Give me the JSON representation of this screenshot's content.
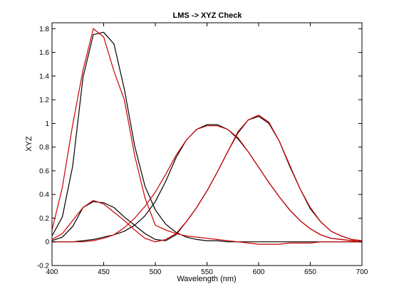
{
  "chart_data": {
    "type": "line",
    "title": "LMS -> XYZ Check",
    "xlabel": "Wavelength (nm)",
    "ylabel": "XYZ",
    "xlim": [
      400,
      700
    ],
    "ylim": [
      -0.2,
      1.85
    ],
    "xticks": [
      400,
      450,
      500,
      550,
      600,
      650,
      700
    ],
    "yticks": [
      -0.2,
      0,
      0.2,
      0.4,
      0.6,
      0.8,
      1,
      1.2,
      1.4,
      1.6,
      1.8
    ],
    "ytick_labels": [
      "-0.2",
      "0",
      "0.2",
      "0.4",
      "0.6",
      "0.8",
      "1",
      "1.2",
      "1.4",
      "1.6",
      "1.8"
    ],
    "grid": false,
    "legend": "none",
    "x": [
      400,
      410,
      420,
      430,
      440,
      450,
      460,
      470,
      480,
      490,
      500,
      510,
      520,
      530,
      540,
      550,
      560,
      570,
      580,
      590,
      600,
      610,
      620,
      630,
      640,
      650,
      660,
      670,
      680,
      690,
      700
    ],
    "series": [
      {
        "color": "#000000",
        "values": [
          0.01,
          0.04,
          0.13,
          0.29,
          0.34,
          0.33,
          0.29,
          0.21,
          0.14,
          0.07,
          0.02,
          0.01,
          0.06,
          0.17,
          0.29,
          0.43,
          0.59,
          0.76,
          0.92,
          1.03,
          1.06,
          1.0,
          0.85,
          0.64,
          0.45,
          0.28,
          0.17,
          0.09,
          0.05,
          0.02,
          0.01
        ]
      },
      {
        "color": "#000000",
        "values": [
          0.0,
          0.0,
          0.0,
          0.01,
          0.02,
          0.04,
          0.06,
          0.09,
          0.14,
          0.22,
          0.34,
          0.51,
          0.71,
          0.86,
          0.95,
          0.99,
          0.99,
          0.95,
          0.87,
          0.76,
          0.63,
          0.5,
          0.38,
          0.27,
          0.18,
          0.11,
          0.06,
          0.03,
          0.02,
          0.01,
          0.0
        ]
      },
      {
        "color": "#000000",
        "values": [
          0.05,
          0.21,
          0.64,
          1.39,
          1.75,
          1.77,
          1.67,
          1.29,
          0.81,
          0.47,
          0.27,
          0.15,
          0.08,
          0.04,
          0.02,
          0.01,
          0.01,
          0.0,
          0.0,
          0.0,
          0.0,
          0.0,
          0.0,
          0.0,
          0.0,
          0.0,
          0.0,
          0.0,
          0.0,
          0.0,
          0.0
        ]
      },
      {
        "color": "#cc0000",
        "values": [
          0.02,
          0.07,
          0.18,
          0.29,
          0.35,
          0.32,
          0.25,
          0.18,
          0.1,
          0.03,
          0.0,
          0.02,
          0.07,
          0.17,
          0.29,
          0.43,
          0.59,
          0.76,
          0.93,
          1.03,
          1.07,
          1.01,
          0.85,
          0.65,
          0.45,
          0.29,
          0.17,
          0.09,
          0.05,
          0.02,
          0.01
        ]
      },
      {
        "color": "#cc0000",
        "values": [
          0.0,
          0.0,
          0.0,
          0.0,
          0.01,
          0.03,
          0.06,
          0.12,
          0.2,
          0.3,
          0.42,
          0.57,
          0.73,
          0.86,
          0.95,
          0.98,
          0.98,
          0.95,
          0.88,
          0.76,
          0.63,
          0.5,
          0.38,
          0.27,
          0.18,
          0.11,
          0.06,
          0.03,
          0.02,
          0.01,
          0.0
        ]
      },
      {
        "color": "#cc0000",
        "values": [
          0.1,
          0.46,
          0.99,
          1.45,
          1.8,
          1.73,
          1.44,
          1.2,
          0.73,
          0.37,
          0.14,
          0.1,
          0.07,
          0.05,
          0.04,
          0.03,
          0.02,
          0.01,
          0.0,
          -0.01,
          -0.02,
          -0.02,
          -0.02,
          -0.01,
          -0.01,
          -0.01,
          0.0,
          0.0,
          0.0,
          0.0,
          0.0
        ]
      }
    ]
  }
}
